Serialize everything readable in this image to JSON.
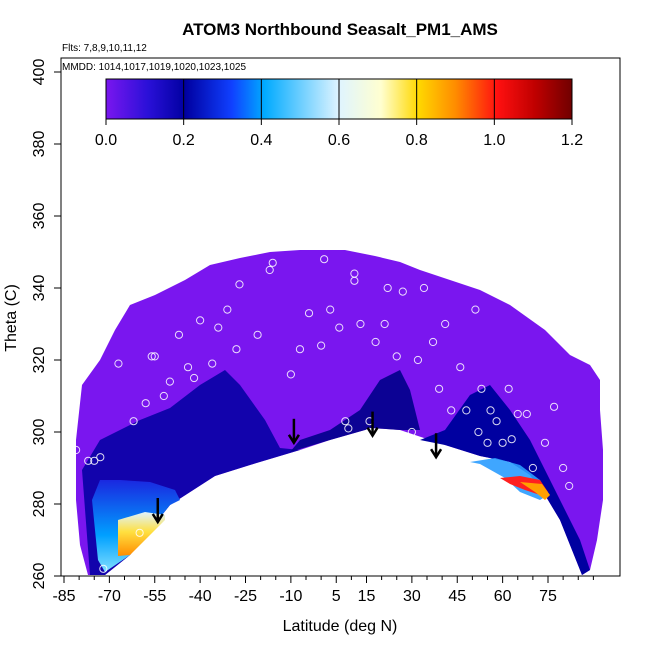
{
  "chart_data": {
    "type": "heatmap",
    "title": "ATOM3 Northbound Seasalt_PM1_AMS",
    "flights_note": "Flts: 7,8,9,10,11,12",
    "mmdd_note": "MMDD: 1014,1017,1019,1020,1023,1025",
    "xlabel": "Latitude (deg N)",
    "ylabel": "Theta (C)",
    "xlim": [
      -85,
      90
    ],
    "ylim": [
      260,
      405
    ],
    "x_ticks": [
      -85,
      -70,
      -55,
      -40,
      -25,
      -10,
      5,
      15,
      30,
      45,
      60,
      75
    ],
    "x_tick_labels": [
      "-85",
      "-70",
      "-55",
      "-40",
      "-25",
      "-10",
      "5",
      "15",
      "30",
      "45",
      "60",
      "75"
    ],
    "y_ticks": [
      260,
      280,
      300,
      320,
      340,
      360,
      380,
      400
    ],
    "y_tick_labels": [
      "260",
      "280",
      "300",
      "320",
      "340",
      "360",
      "380",
      "400"
    ],
    "colorbar": {
      "min": 0.0,
      "max": 1.2,
      "ticks": [
        0.0,
        0.2,
        0.4,
        0.6,
        0.8,
        1.0,
        1.2
      ],
      "tick_labels": [
        "0.0",
        "0.2",
        "0.4",
        "0.6",
        "0.8",
        "1.0",
        "1.2"
      ],
      "colors": [
        "#7a16ef",
        "#1010d0",
        "#0000a0",
        "#2a7cff",
        "#00bfff",
        "#dff4ff",
        "#ffffd0",
        "#ffd800",
        "#ff8c00",
        "#ff1010",
        "#c00000",
        "#700000"
      ]
    },
    "tropopause_arrows": [
      {
        "lat": -54,
        "theta": 275
      },
      {
        "lat": -9,
        "theta": 297
      },
      {
        "lat": 17,
        "theta": 299
      },
      {
        "lat": 38,
        "theta": 293
      }
    ],
    "samples": [
      {
        "lat": -82,
        "theta": 311
      },
      {
        "lat": -81,
        "theta": 295
      },
      {
        "lat": -77,
        "theta": 292
      },
      {
        "lat": -75,
        "theta": 292
      },
      {
        "lat": -73,
        "theta": 293
      },
      {
        "lat": -67,
        "theta": 319
      },
      {
        "lat": -62,
        "theta": 303
      },
      {
        "lat": -58,
        "theta": 308
      },
      {
        "lat": -56,
        "theta": 321
      },
      {
        "lat": -55,
        "theta": 321
      },
      {
        "lat": -52,
        "theta": 310
      },
      {
        "lat": -50,
        "theta": 314
      },
      {
        "lat": -47,
        "theta": 327
      },
      {
        "lat": -44,
        "theta": 318
      },
      {
        "lat": -42,
        "theta": 315
      },
      {
        "lat": -40,
        "theta": 331
      },
      {
        "lat": -36,
        "theta": 319
      },
      {
        "lat": -34,
        "theta": 329
      },
      {
        "lat": -31,
        "theta": 334
      },
      {
        "lat": -28,
        "theta": 323
      },
      {
        "lat": -27,
        "theta": 341
      },
      {
        "lat": -21,
        "theta": 327
      },
      {
        "lat": -17,
        "theta": 345
      },
      {
        "lat": -16,
        "theta": 347
      },
      {
        "lat": -10,
        "theta": 316
      },
      {
        "lat": -7,
        "theta": 323
      },
      {
        "lat": -4,
        "theta": 333
      },
      {
        "lat": 0,
        "theta": 324
      },
      {
        "lat": 1,
        "theta": 348
      },
      {
        "lat": 3,
        "theta": 334
      },
      {
        "lat": 6,
        "theta": 329
      },
      {
        "lat": 8,
        "theta": 303
      },
      {
        "lat": 9,
        "theta": 301
      },
      {
        "lat": 11,
        "theta": 342
      },
      {
        "lat": 11,
        "theta": 344
      },
      {
        "lat": 13,
        "theta": 330
      },
      {
        "lat": 16,
        "theta": 300
      },
      {
        "lat": 16,
        "theta": 303
      },
      {
        "lat": 18,
        "theta": 325
      },
      {
        "lat": 21,
        "theta": 330
      },
      {
        "lat": 22,
        "theta": 340
      },
      {
        "lat": 25,
        "theta": 321
      },
      {
        "lat": 27,
        "theta": 339
      },
      {
        "lat": 30,
        "theta": 300
      },
      {
        "lat": 32,
        "theta": 320
      },
      {
        "lat": 34,
        "theta": 340
      },
      {
        "lat": 37,
        "theta": 325
      },
      {
        "lat": 39,
        "theta": 312
      },
      {
        "lat": 41,
        "theta": 330
      },
      {
        "lat": 43,
        "theta": 306
      },
      {
        "lat": 44,
        "theta": 290
      },
      {
        "lat": 46,
        "theta": 318
      },
      {
        "lat": 48,
        "theta": 306
      },
      {
        "lat": 51,
        "theta": 334
      },
      {
        "lat": 52,
        "theta": 300
      },
      {
        "lat": 53,
        "theta": 312
      },
      {
        "lat": 55,
        "theta": 297
      },
      {
        "lat": 56,
        "theta": 306
      },
      {
        "lat": 58,
        "theta": 303
      },
      {
        "lat": 60,
        "theta": 297
      },
      {
        "lat": 62,
        "theta": 312
      },
      {
        "lat": 63,
        "theta": 298
      },
      {
        "lat": 65,
        "theta": 305
      },
      {
        "lat": 68,
        "theta": 305
      },
      {
        "lat": 70,
        "theta": 290
      },
      {
        "lat": 72,
        "theta": 278
      },
      {
        "lat": 74,
        "theta": 297
      },
      {
        "lat": 77,
        "theta": 307
      },
      {
        "lat": 80,
        "theta": 290
      },
      {
        "lat": 82,
        "theta": 285
      },
      {
        "lat": -72,
        "theta": 262
      },
      {
        "lat": -60,
        "theta": 272
      }
    ]
  }
}
